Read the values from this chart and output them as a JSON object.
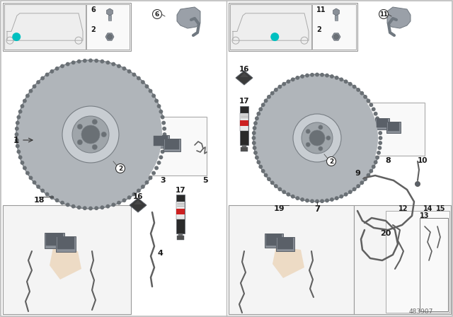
{
  "part_number": "483907",
  "bg": "#ffffff",
  "border": "#bbbbbb",
  "disk_face": "#b0b5ba",
  "disk_edge": "#787e84",
  "disk_inner": "#c8cdd2",
  "disk_hub": "#9fa5aa",
  "hub_hole": "#6a7075",
  "teeth_color": "#6a7075",
  "part_gray": "#8a9098",
  "part_dark": "#5a6068",
  "part_mid": "#a0a8b0",
  "box_fill": "#f4f4f4",
  "box_edge": "#999999",
  "inner_box_fill": "#f9f9f9",
  "inner_box_edge": "#aaaaaa",
  "watermark_light": "#e8e8e8",
  "watermark_orange": "#e8c8a0",
  "teal": "#00c0c0",
  "text_dark": "#1a1a1a",
  "text_mid": "#444444",
  "wire_color": "#606060",
  "spray_body": "#2a2a2a",
  "spray_white_band": "#e8e8e8",
  "spray_red": "#cc2020",
  "grease_color": "#3a3a3a",
  "bracket_light": "#9aa0a8",
  "bracket_dark": "#707880",
  "car_line": "#aaaaaa",
  "car_bg": "#eeeeee",
  "circle_bg": "#ffffff",
  "circle_edge": "#333333",
  "sensor_dark": "#4a4a4a"
}
